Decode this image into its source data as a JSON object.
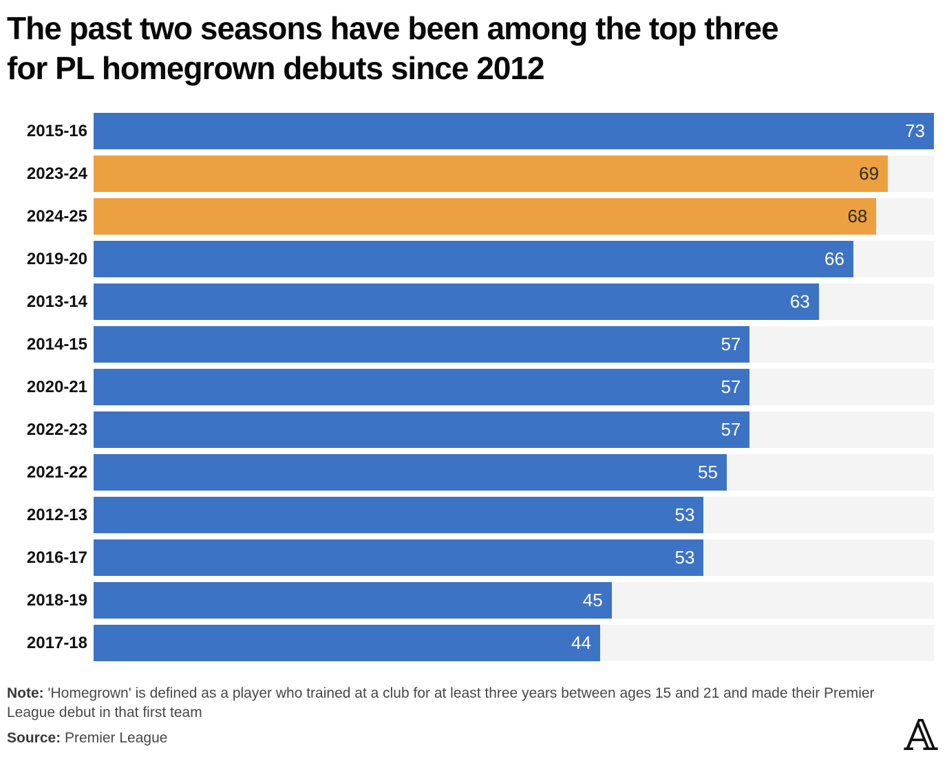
{
  "header": {
    "title_lines": [
      "The past two seasons have been among the top three",
      "for PL homegrown debuts since 2012"
    ]
  },
  "chart_data": {
    "type": "bar",
    "orientation": "horizontal",
    "title": "The past two seasons have been among the top three for PL homegrown debuts since 2012",
    "xlabel": "",
    "ylabel": "",
    "xlim": [
      0,
      73
    ],
    "grid": false,
    "legend": "none",
    "value_labels": "inside-end",
    "categories": [
      "2015-16",
      "2023-24",
      "2024-25",
      "2019-20",
      "2013-14",
      "2014-15",
      "2020-21",
      "2022-23",
      "2021-22",
      "2012-13",
      "2016-17",
      "2018-19",
      "2017-18"
    ],
    "values": [
      73,
      69,
      68,
      66,
      63,
      57,
      57,
      57,
      55,
      53,
      53,
      45,
      44
    ],
    "highlighted_categories": [
      "2023-24",
      "2024-25"
    ],
    "colors": {
      "bar": "#3d73c4",
      "highlight": "#eda03f",
      "track": "#f4f4f4",
      "value_on_bar": "#ffffff",
      "value_on_highlight": "#2b2b2b"
    }
  },
  "footer": {
    "note_prefix": "Note:",
    "note_text": " 'Homegrown' is defined as a player who trained at a club for at least three years between ages 15 and 21 and made their Premier League debut in that first team",
    "source_prefix": "Source:",
    "source_text": " Premier League",
    "logo_glyph": "𝔸"
  }
}
